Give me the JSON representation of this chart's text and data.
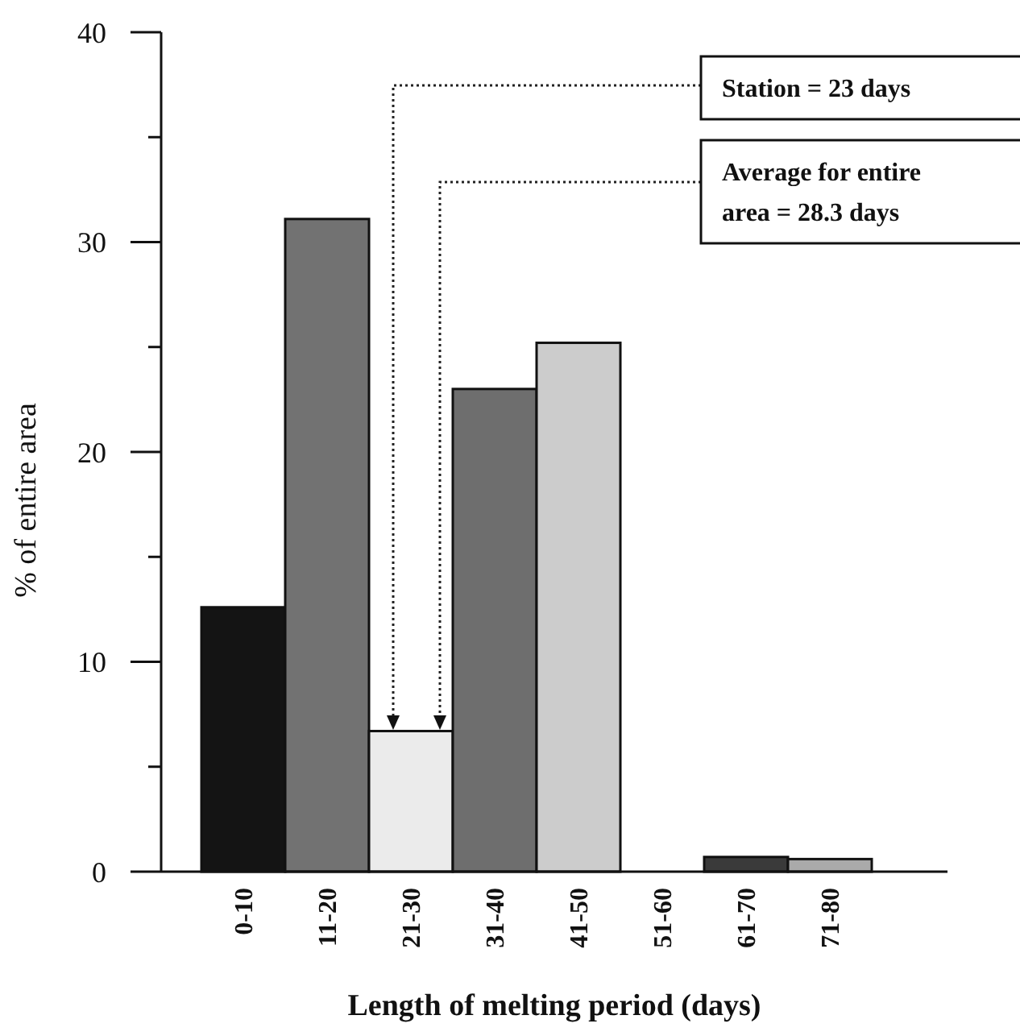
{
  "chart_data": {
    "type": "bar",
    "xlabel": "Length of melting period (days)",
    "ylabel": "% of entire area",
    "categories": [
      "0-10",
      "11-20",
      "21-30",
      "31-40",
      "41-50",
      "51-60",
      "61-70",
      "71-80"
    ],
    "values": [
      12.6,
      31.1,
      6.7,
      23.0,
      25.2,
      0,
      0.7,
      0.6
    ],
    "colors": [
      "#141414",
      "#727272",
      "#ebebeb",
      "#6e6e6e",
      "#cccccc",
      "#ffffff",
      "#3a3a3a",
      "#aaaaaa"
    ],
    "ylim": [
      0,
      40
    ],
    "yticks": [
      0,
      {
        "value": 5,
        "label": null
      },
      10,
      {
        "value": 15,
        "label": null
      },
      20,
      {
        "value": 25,
        "label": null
      },
      30,
      {
        "value": 35,
        "label": null
      },
      40
    ],
    "grid": false,
    "annotations": [
      "Station = 23 days",
      "Average for entire area = 28.3 days"
    ]
  }
}
